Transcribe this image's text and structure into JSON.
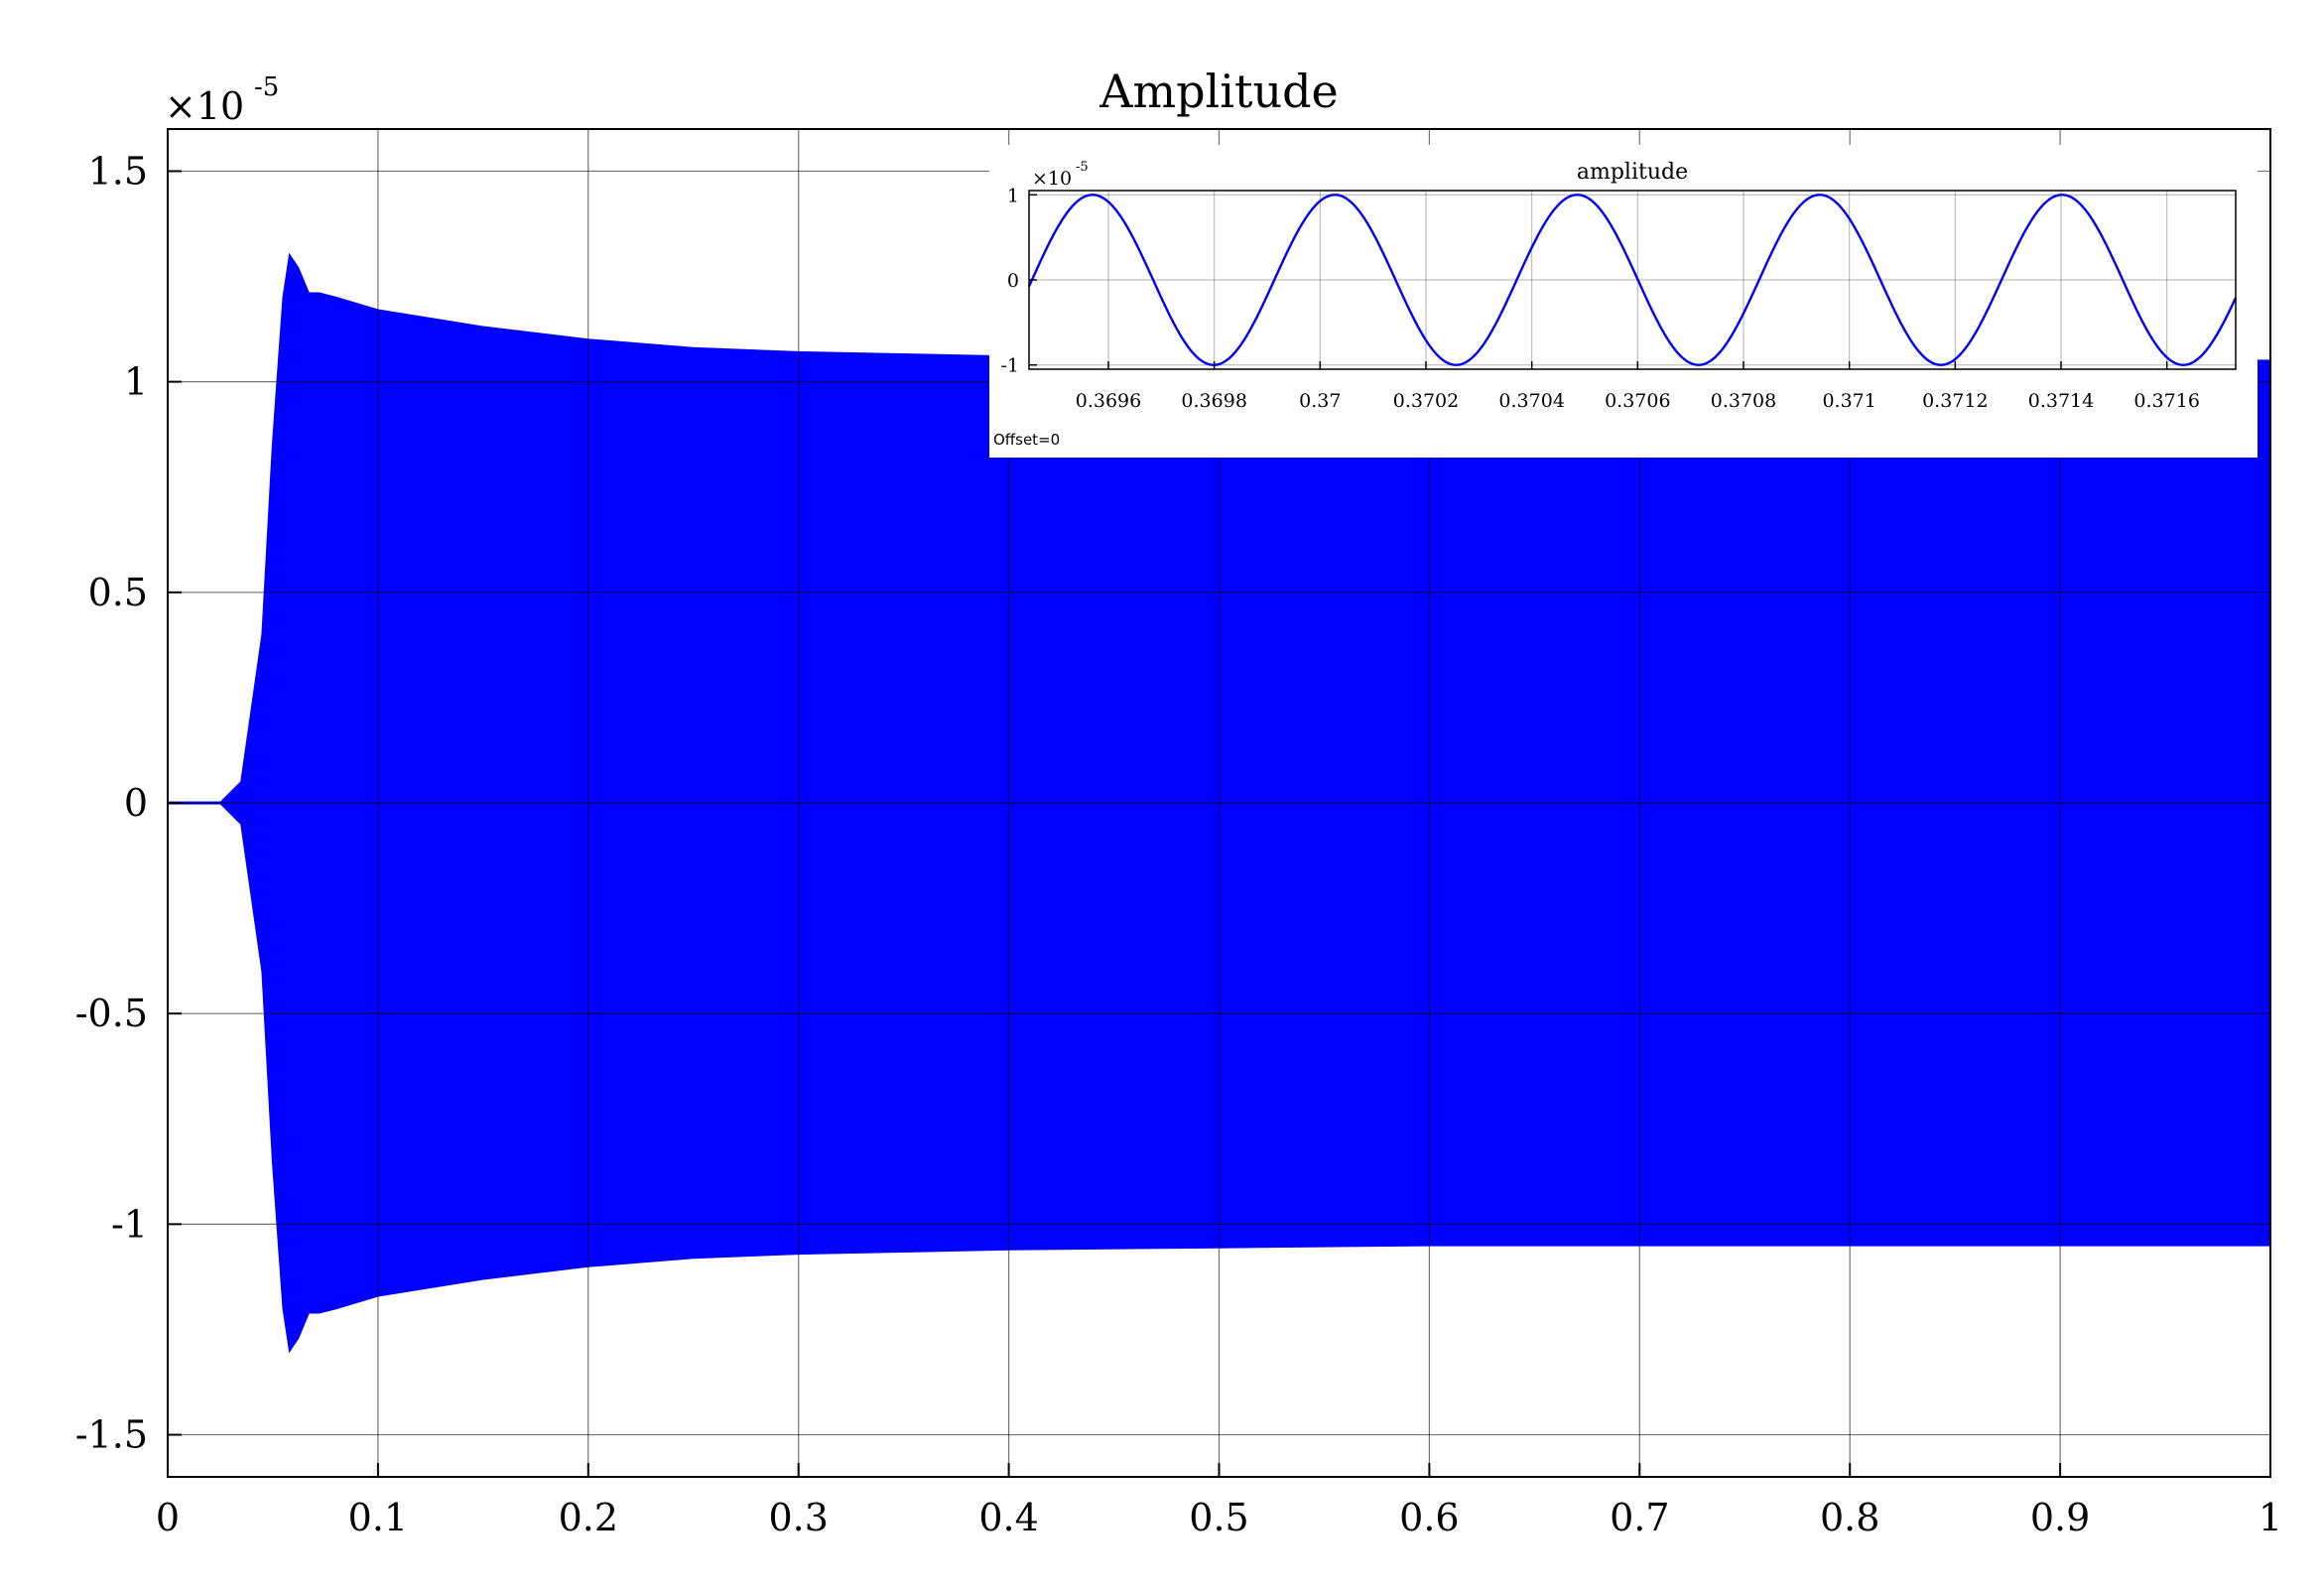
{
  "chart_data": [
    {
      "type": "line",
      "title": "Amplitude",
      "xlabel": "",
      "ylabel": "",
      "exponent_label": "×10",
      "exponent_power": "-5",
      "xlim": [
        0,
        1
      ],
      "ylim": [
        -1.6,
        1.6
      ],
      "x_ticks": [
        "0",
        "0.1",
        "0.2",
        "0.3",
        "0.4",
        "0.5",
        "0.6",
        "0.7",
        "0.8",
        "0.9",
        "1"
      ],
      "x_tick_values": [
        0,
        0.1,
        0.2,
        0.3,
        0.4,
        0.5,
        0.6,
        0.7,
        0.8,
        0.9,
        1
      ],
      "y_ticks": [
        "1.5",
        "1",
        "0.5",
        "0",
        "-0.5",
        "-1",
        "-1.5"
      ],
      "y_tick_values": [
        1.5,
        1,
        0.5,
        0,
        -0.5,
        -1,
        -1.5
      ],
      "grid": true,
      "series_color": "#0000ff",
      "envelope": {
        "x": [
          0,
          0.025,
          0.035,
          0.045,
          0.05,
          0.055,
          0.058,
          0.062,
          0.067,
          0.072,
          0.08,
          0.1,
          0.15,
          0.2,
          0.25,
          0.3,
          0.35,
          0.4,
          0.5,
          0.6,
          0.7,
          0.8,
          0.9,
          1.0
        ],
        "upper": [
          0,
          0,
          0.05,
          0.4,
          0.85,
          1.2,
          1.3,
          1.27,
          1.21,
          1.21,
          1.2,
          1.17,
          1.13,
          1.1,
          1.08,
          1.07,
          1.065,
          1.06,
          1.055,
          1.05,
          1.05,
          1.05,
          1.05,
          1.05
        ]
      }
    },
    {
      "type": "line",
      "title": "amplitude",
      "exponent_label": "×10",
      "exponent_power": "-5",
      "footer": "Offset=0",
      "xlim": [
        0.36945,
        0.37173
      ],
      "ylim": [
        -1.05,
        1.05
      ],
      "x_ticks": [
        "0.3696",
        "0.3698",
        "0.37",
        "0.3702",
        "0.3704",
        "0.3706",
        "0.3708",
        "0.371",
        "0.3712",
        "0.3714",
        "0.3716"
      ],
      "x_tick_values": [
        0.3696,
        0.3698,
        0.37,
        0.3702,
        0.3704,
        0.3706,
        0.3708,
        0.371,
        0.3712,
        0.3714,
        0.3716
      ],
      "y_ticks": [
        "1",
        "0",
        "-1"
      ],
      "y_tick_values": [
        1,
        0,
        -1
      ],
      "grid": true,
      "series_color": "#0000ff",
      "sine": {
        "amplitude": 1,
        "period": 0.000458,
        "peak_x": 0.36957
      }
    }
  ]
}
